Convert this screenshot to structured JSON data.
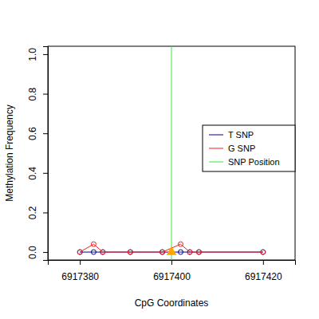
{
  "chart_data": {
    "type": "line",
    "x_label": "CpG Coordinates",
    "y_label": "Methylation Frequency",
    "x": [
      6917380,
      6917383,
      6917385,
      6917391,
      6917398,
      6917402,
      6917404,
      6917406,
      6917420
    ],
    "series": [
      {
        "name": "T SNP",
        "color": "#00008b",
        "marker": "circle",
        "line_style": "solid",
        "values": [
          0,
          0,
          0,
          0,
          0,
          0,
          0,
          0,
          0
        ]
      },
      {
        "name": "G SNP",
        "color": "#ee2222",
        "marker": "circle",
        "line_style": "solid",
        "values": [
          0,
          0.04,
          0,
          0,
          0,
          0.04,
          0,
          0,
          0
        ]
      },
      {
        "name": "SNP Position",
        "color": "#33ee33",
        "type": "vline",
        "marker": "triangle",
        "x": [
          6917400
        ],
        "values": [
          0
        ]
      }
    ],
    "xlim": [
      6917373,
      6917427
    ],
    "xticks": [
      6917380,
      6917400,
      6917420
    ],
    "ylim": [
      -0.04,
      1.04
    ],
    "yticks": [
      {
        "value": 0,
        "label": "0.0"
      },
      {
        "value": 0.2,
        "label": "0.2"
      },
      {
        "value": 0.4,
        "label": "0.4"
      },
      {
        "value": 0.6,
        "label": "0.6"
      },
      {
        "value": 0.8,
        "label": "0.8"
      },
      {
        "value": 1,
        "label": "1.0"
      }
    ],
    "legend": "right",
    "grid": false
  }
}
